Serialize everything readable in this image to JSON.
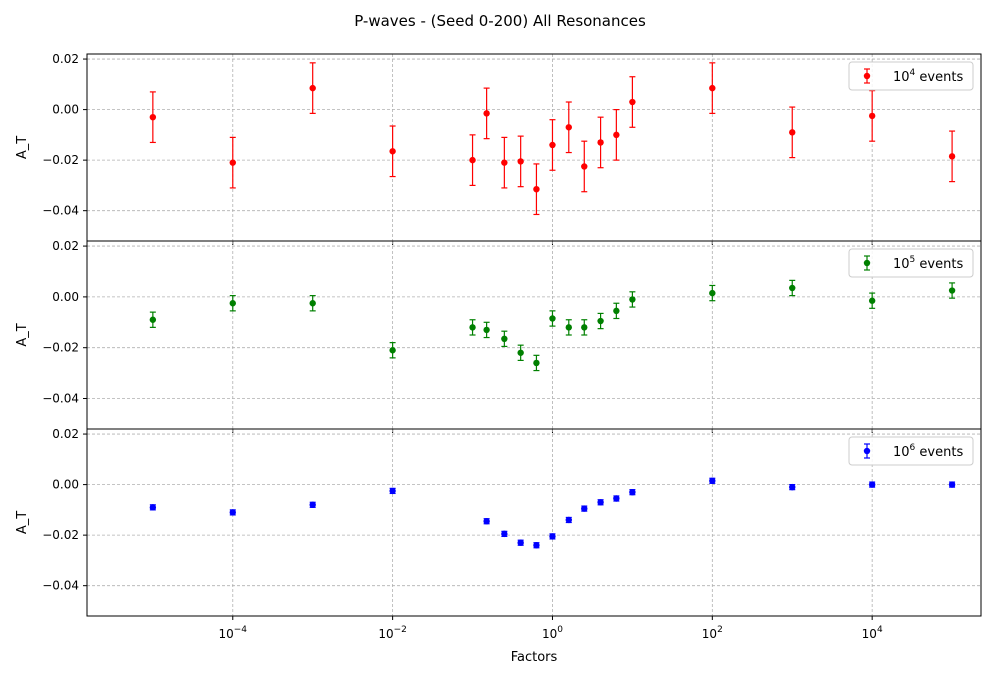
{
  "chart_data": {
    "type": "scatter",
    "title": "P-waves - (Seed 0-200) All Resonances",
    "xlabel": "Factors",
    "x_scale": "log",
    "xlim": [
      1.5e-06,
      230000.0
    ],
    "x_ticks": [
      {
        "value": 0.0001,
        "base": "10",
        "exp": "−4"
      },
      {
        "value": 0.01,
        "base": "10",
        "exp": "−2"
      },
      {
        "value": 1,
        "base": "10",
        "exp": "0"
      },
      {
        "value": 100,
        "base": "10",
        "exp": "2"
      },
      {
        "value": 10000,
        "base": "10",
        "exp": "4"
      }
    ],
    "grid": true,
    "legend_position": "upper right",
    "x": [
      1e-05,
      0.0001,
      0.001,
      0.01,
      0.1,
      0.15,
      0.25,
      0.4,
      0.63,
      1,
      1.6,
      2.5,
      4,
      6.3,
      10,
      100,
      1000,
      10000,
      100000
    ],
    "panels": [
      {
        "ylabel": "A_T",
        "ylim": [
          -0.052,
          0.022
        ],
        "y_ticks": [
          "0.02",
          "0.00",
          "−0.02",
          "−0.04"
        ],
        "y_tick_values": [
          0.02,
          0.0,
          -0.02,
          -0.04
        ],
        "series_base": "10",
        "series_exp": "4",
        "series_suffix": " events",
        "color": "#ff0000",
        "x": [
          1e-05,
          0.0001,
          0.001,
          0.01,
          0.1,
          0.15,
          0.25,
          0.4,
          0.63,
          1,
          1.6,
          2.5,
          4,
          6.3,
          10,
          100,
          1000,
          10000,
          100000
        ],
        "y": [
          -0.003,
          -0.021,
          0.0085,
          -0.0165,
          -0.02,
          -0.0015,
          -0.021,
          -0.0205,
          -0.0315,
          -0.014,
          -0.007,
          -0.0225,
          -0.013,
          -0.01,
          0.003,
          0.0085,
          -0.009,
          -0.0025,
          -0.0185
        ],
        "yerr": [
          0.01,
          0.01,
          0.01,
          0.01,
          0.01,
          0.01,
          0.01,
          0.01,
          0.01,
          0.01,
          0.01,
          0.01,
          0.01,
          0.01,
          0.01,
          0.01,
          0.01,
          0.01,
          0.01
        ]
      },
      {
        "ylabel": "A_T",
        "ylim": [
          -0.052,
          0.022
        ],
        "y_ticks": [
          "0.02",
          "0.00",
          "−0.02",
          "−0.04"
        ],
        "y_tick_values": [
          0.02,
          0.0,
          -0.02,
          -0.04
        ],
        "series_base": "10",
        "series_exp": "5",
        "series_suffix": " events",
        "color": "#008000",
        "x": [
          1e-05,
          0.0001,
          0.001,
          0.01,
          0.1,
          0.15,
          0.25,
          0.4,
          0.63,
          1,
          1.6,
          2.5,
          4,
          6.3,
          10,
          100,
          1000,
          10000,
          100000
        ],
        "y": [
          -0.009,
          -0.0025,
          -0.0025,
          -0.021,
          -0.012,
          -0.013,
          -0.0165,
          -0.022,
          -0.026,
          -0.0085,
          -0.012,
          -0.012,
          -0.0095,
          -0.0055,
          -0.001,
          0.0015,
          0.0035,
          -0.0015,
          0.0025
        ],
        "yerr": [
          0.003,
          0.003,
          0.003,
          0.003,
          0.003,
          0.003,
          0.003,
          0.003,
          0.003,
          0.003,
          0.003,
          0.003,
          0.003,
          0.003,
          0.003,
          0.003,
          0.003,
          0.003,
          0.003
        ]
      },
      {
        "ylabel": "A_T",
        "ylim": [
          -0.052,
          0.022
        ],
        "y_ticks": [
          "0.02",
          "0.00",
          "−0.02",
          "−0.04"
        ],
        "y_tick_values": [
          0.02,
          0.0,
          -0.02,
          -0.04
        ],
        "series_base": "10",
        "series_exp": "6",
        "series_suffix": " events",
        "color": "#0000ff",
        "x": [
          1e-05,
          0.0001,
          0.001,
          0.01,
          0.15,
          0.25,
          0.4,
          0.63,
          1,
          1.6,
          2.5,
          4,
          6.3,
          10,
          100,
          1000,
          10000,
          100000
        ],
        "y": [
          -0.009,
          -0.011,
          -0.008,
          -0.0025,
          -0.0145,
          -0.0195,
          -0.023,
          -0.024,
          -0.0205,
          -0.014,
          -0.0095,
          -0.007,
          -0.0055,
          -0.003,
          0.0015,
          -0.001,
          0.0,
          0.0
        ],
        "yerr": [
          0.001,
          0.001,
          0.001,
          0.001,
          0.001,
          0.001,
          0.001,
          0.001,
          0.001,
          0.001,
          0.001,
          0.001,
          0.001,
          0.001,
          0.001,
          0.001,
          0.001,
          0.001
        ]
      }
    ]
  }
}
